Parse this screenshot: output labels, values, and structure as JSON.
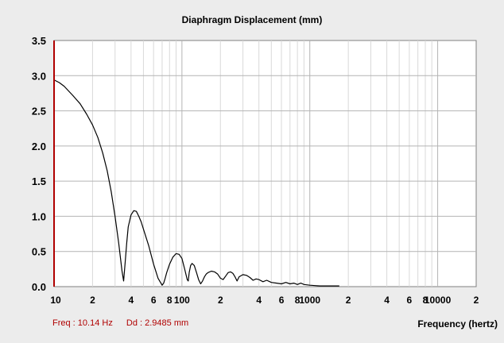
{
  "chart_data": {
    "type": "line",
    "title": "Diaphragm Displacement (mm)",
    "xlabel": "Frequency (hertz)",
    "ylabel": "",
    "xscale": "log",
    "xlim": [
      10,
      20000
    ],
    "ylim": [
      0,
      3.5
    ],
    "grid": true,
    "y_ticks": [
      "0.0",
      "0.5",
      "1.0",
      "1.5",
      "2.0",
      "2.5",
      "3.0",
      "3.5"
    ],
    "x_ticks": [
      {
        "value": 10,
        "label": "10"
      },
      {
        "value": 20,
        "label": "2"
      },
      {
        "value": 40,
        "label": "4"
      },
      {
        "value": 60,
        "label": "6"
      },
      {
        "value": 80,
        "label": "8"
      },
      {
        "value": 100,
        "label": "100"
      },
      {
        "value": 200,
        "label": "2"
      },
      {
        "value": 400,
        "label": "4"
      },
      {
        "value": 600,
        "label": "6"
      },
      {
        "value": 800,
        "label": "8"
      },
      {
        "value": 1000,
        "label": "1000"
      },
      {
        "value": 2000,
        "label": "2"
      },
      {
        "value": 4000,
        "label": "4"
      },
      {
        "value": 6000,
        "label": "6"
      },
      {
        "value": 8000,
        "label": "8"
      },
      {
        "value": 10000,
        "label": "10000"
      },
      {
        "value": 20000,
        "label": "2"
      }
    ],
    "series": [
      {
        "color": "#000000",
        "x": [
          10,
          11,
          12,
          14,
          16,
          18,
          20,
          22,
          24,
          26,
          28,
          30,
          32,
          34,
          35,
          36,
          37,
          38,
          40,
          42,
          44,
          46,
          48,
          50,
          55,
          60,
          65,
          70,
          72,
          74,
          76,
          80,
          85,
          90,
          95,
          100,
          105,
          110,
          112,
          114,
          117,
          120,
          125,
          130,
          135,
          140,
          145,
          150,
          155,
          160,
          170,
          180,
          190,
          200,
          210,
          220,
          230,
          240,
          250,
          260,
          270,
          280,
          300,
          320,
          340,
          360,
          380,
          400,
          430,
          460,
          500,
          550,
          600,
          650,
          700,
          750,
          800,
          850,
          900,
          1000,
          1100,
          1200,
          1400,
          1500,
          1600,
          1700
        ],
        "y": [
          2.94,
          2.9,
          2.85,
          2.72,
          2.6,
          2.45,
          2.3,
          2.12,
          1.9,
          1.65,
          1.35,
          1.0,
          0.62,
          0.22,
          0.08,
          0.35,
          0.62,
          0.85,
          1.02,
          1.08,
          1.07,
          1.0,
          0.92,
          0.82,
          0.58,
          0.32,
          0.12,
          0.02,
          0.05,
          0.12,
          0.2,
          0.32,
          0.42,
          0.47,
          0.46,
          0.4,
          0.25,
          0.1,
          0.08,
          0.2,
          0.3,
          0.33,
          0.3,
          0.2,
          0.1,
          0.04,
          0.08,
          0.14,
          0.18,
          0.2,
          0.22,
          0.21,
          0.18,
          0.12,
          0.1,
          0.15,
          0.2,
          0.21,
          0.19,
          0.14,
          0.08,
          0.14,
          0.17,
          0.16,
          0.13,
          0.09,
          0.11,
          0.1,
          0.07,
          0.09,
          0.06,
          0.05,
          0.04,
          0.06,
          0.04,
          0.05,
          0.03,
          0.05,
          0.03,
          0.02,
          0.015,
          0.01,
          0.01,
          0.01,
          0.01,
          0.01
        ]
      }
    ]
  },
  "readout": {
    "freq": "Freq : 10.14 Hz",
    "dd": "Dd : 2.9485 mm"
  },
  "colors": {
    "grid": "#b4b4b4",
    "minor_grid": "#d9d9d9",
    "left_axis": "#b00000",
    "readout": "#b00000"
  }
}
